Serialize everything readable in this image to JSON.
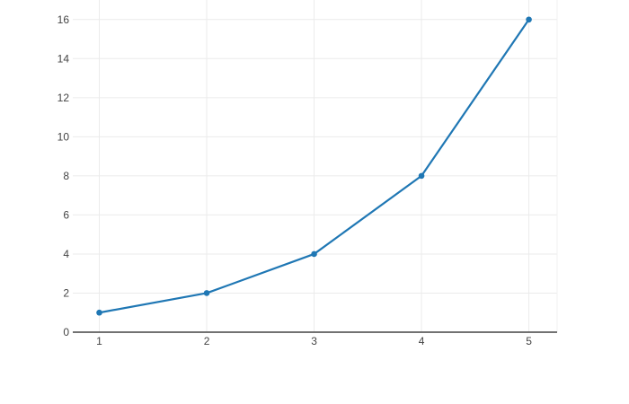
{
  "chart_data": {
    "type": "line",
    "mode": "lines+markers",
    "title": "",
    "xlabel": "",
    "ylabel": "",
    "x": [
      1,
      2,
      3,
      4,
      5
    ],
    "y": [
      1,
      2,
      4,
      8,
      16
    ],
    "xticks": [
      1,
      2,
      3,
      4,
      5
    ],
    "yticks": [
      0,
      2,
      4,
      6,
      8,
      10,
      12,
      14,
      16
    ],
    "xlim": [
      0.753,
      5.263
    ],
    "ylim": [
      0,
      17
    ],
    "grid": true,
    "legend": false,
    "colors": {
      "line": "#1f77b4",
      "marker": "#1f77b4",
      "grid": "#ebebeb",
      "plot_edge": "#f0f0f0",
      "axis_line": "#444444",
      "tick_label": "#444444",
      "background": "#ffffff"
    },
    "marker_size": 3.3,
    "line_width": 2.2
  }
}
